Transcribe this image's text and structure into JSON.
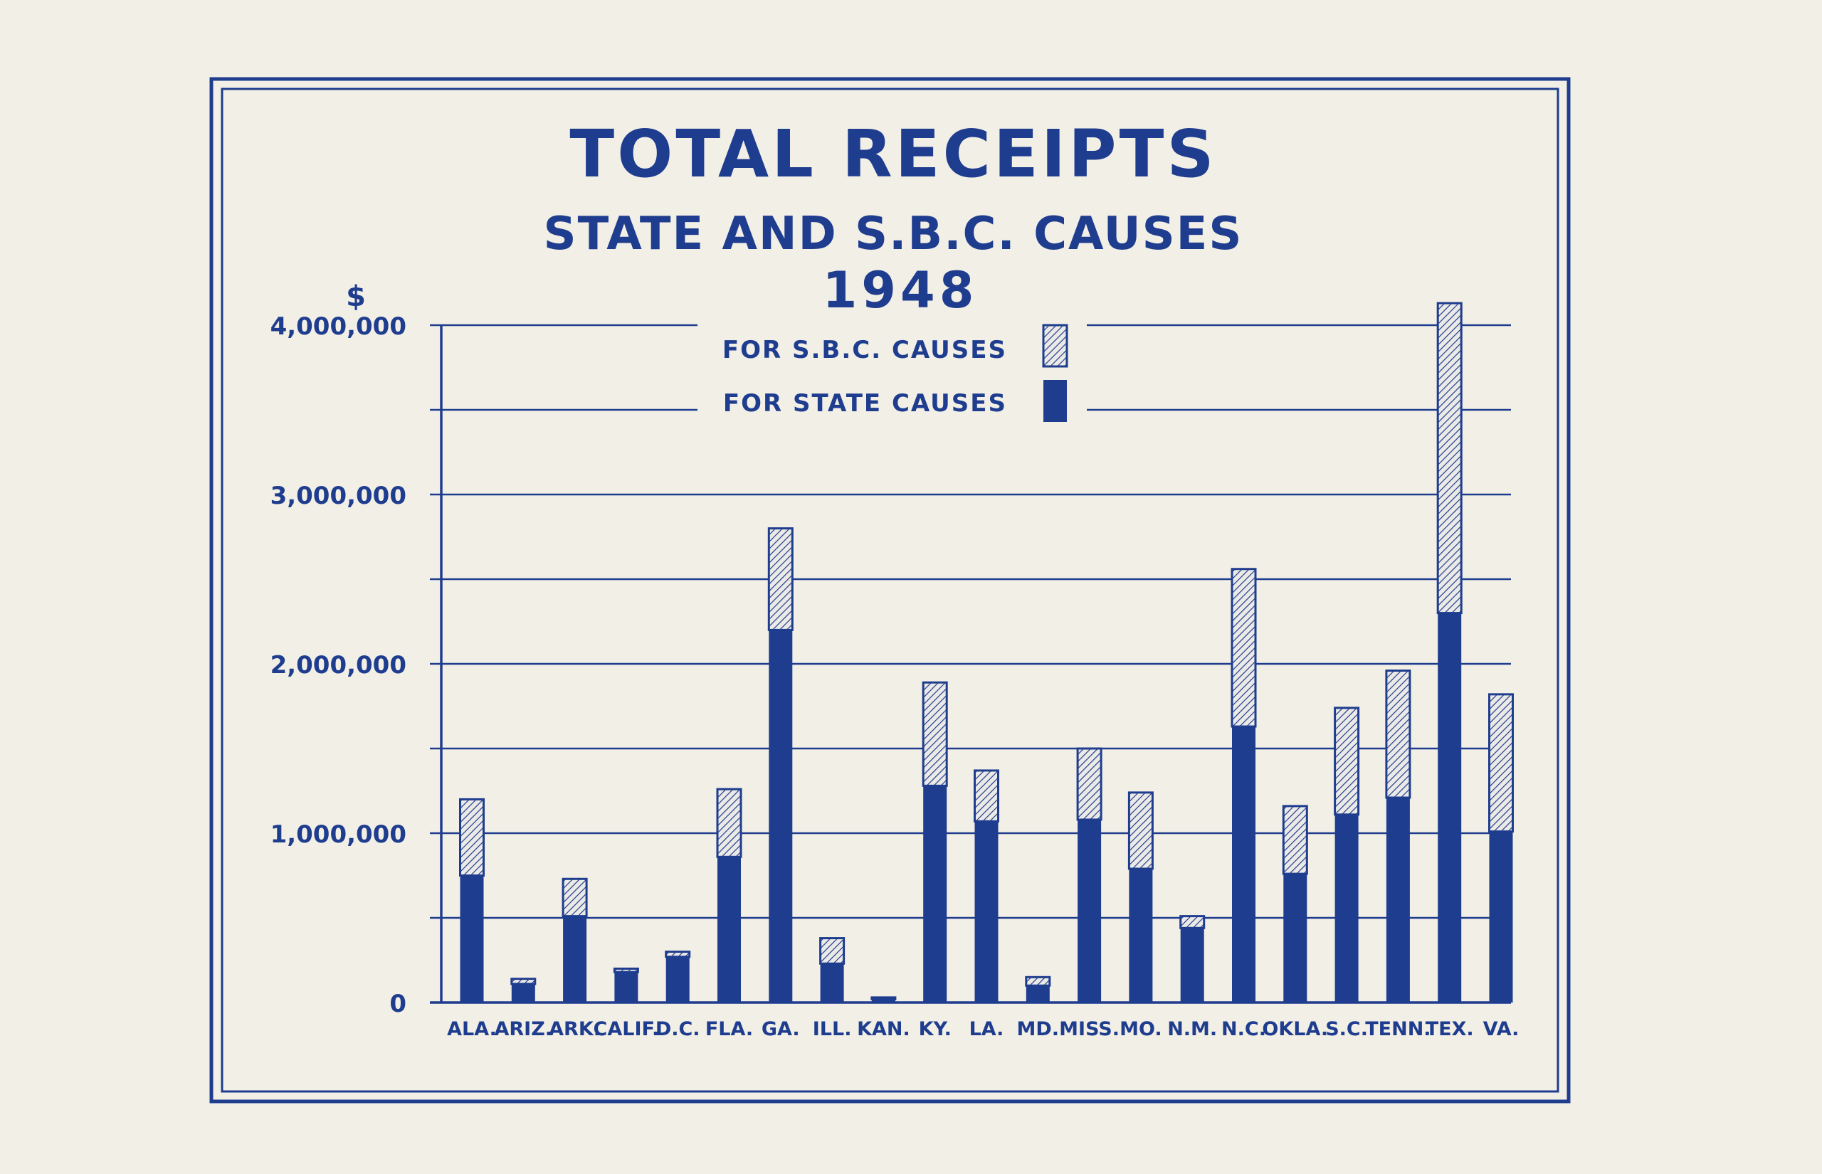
{
  "chart_data": {
    "type": "bar",
    "stacked": true,
    "title": "TOTAL RECEIPTS",
    "subtitle": "STATE AND S.B.C. CAUSES",
    "year": "1948",
    "ylabel": "$",
    "ylim": [
      0,
      4000000
    ],
    "yticks": [
      0,
      1000000,
      2000000,
      3000000,
      4000000
    ],
    "ytick_labels": [
      "0",
      "1,000,000",
      "2,000,000",
      "3,000,000",
      "4,000,000"
    ],
    "grid": true,
    "grid_interval": 500000,
    "legend_placement": "top-center",
    "categories": [
      "ALA.",
      "ARIZ.",
      "ARK.",
      "CALIF.",
      "D.C.",
      "FLA.",
      "GA.",
      "ILL.",
      "KAN.",
      "KY.",
      "LA.",
      "MD.",
      "MISS.",
      "MO.",
      "N.M.",
      "N.C.",
      "OKLA.",
      "S.C.",
      "TENN.",
      "TEX.",
      "VA."
    ],
    "series": [
      {
        "name": "FOR STATE CAUSES",
        "pattern": "solid",
        "color": "#1f3d8e",
        "values": [
          750000,
          110000,
          510000,
          180000,
          270000,
          860000,
          2200000,
          230000,
          20000,
          1280000,
          1070000,
          100000,
          1080000,
          790000,
          440000,
          1630000,
          760000,
          1110000,
          1210000,
          2300000,
          1010000
        ]
      },
      {
        "name": "FOR S.B.C. CAUSES",
        "pattern": "hatched",
        "color": "#1f3d8e",
        "values": [
          450000,
          30000,
          220000,
          20000,
          30000,
          400000,
          600000,
          150000,
          10000,
          610000,
          300000,
          50000,
          420000,
          450000,
          70000,
          930000,
          400000,
          630000,
          750000,
          1830000,
          810000
        ]
      }
    ]
  },
  "colors": {
    "ink": "#1f3d8e",
    "paper": "#f2efe7"
  }
}
